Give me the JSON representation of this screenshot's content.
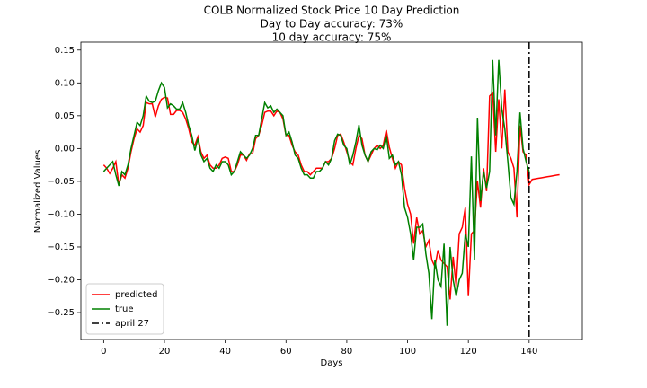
{
  "chart_data": {
    "type": "line",
    "title": "COLB Normalized Stock Price 10 Day Prediction",
    "subtitles": [
      "Day to Day accuracy: 73%",
      "10 day accuracy: 75%"
    ],
    "x_label": "Days",
    "y_label": "Normalized Values",
    "x": [
      0,
      1,
      2,
      3,
      4,
      5,
      6,
      7,
      8,
      9,
      10,
      11,
      12,
      13,
      14,
      15,
      16,
      17,
      18,
      19,
      20,
      21,
      22,
      23,
      24,
      25,
      26,
      27,
      28,
      29,
      30,
      31,
      32,
      33,
      34,
      35,
      36,
      37,
      38,
      39,
      40,
      41,
      42,
      43,
      44,
      45,
      46,
      47,
      48,
      49,
      50,
      51,
      52,
      53,
      54,
      55,
      56,
      57,
      58,
      59,
      60,
      61,
      62,
      63,
      64,
      65,
      66,
      67,
      68,
      69,
      70,
      71,
      72,
      73,
      74,
      75,
      76,
      77,
      78,
      79,
      80,
      81,
      82,
      83,
      84,
      85,
      86,
      87,
      88,
      89,
      90,
      91,
      92,
      93,
      94,
      95,
      96,
      97,
      98,
      99,
      100,
      101,
      102,
      103,
      104,
      105,
      106,
      107,
      108,
      109,
      110,
      111,
      112,
      113,
      114,
      115,
      116,
      117,
      118,
      119,
      120,
      121,
      122,
      123,
      124,
      125,
      126,
      127,
      128,
      129,
      130,
      131,
      132,
      133,
      134,
      135,
      136,
      137,
      138,
      139,
      140,
      141,
      142,
      143,
      144,
      145,
      146,
      147,
      148,
      149,
      150
    ],
    "series": [
      {
        "name": "predicted",
        "color": "#ff0000",
        "values": [
          -0.025,
          -0.03,
          -0.038,
          -0.03,
          -0.02,
          -0.055,
          -0.04,
          -0.045,
          -0.03,
          -0.005,
          0.015,
          0.03,
          0.025,
          0.035,
          0.07,
          0.068,
          0.068,
          0.048,
          0.065,
          0.075,
          0.078,
          0.077,
          0.052,
          0.052,
          0.058,
          0.058,
          0.055,
          0.045,
          0.03,
          0.01,
          0.005,
          0.018,
          -0.005,
          -0.015,
          -0.01,
          -0.025,
          -0.03,
          -0.03,
          -0.025,
          -0.015,
          -0.013,
          -0.015,
          -0.035,
          -0.035,
          -0.025,
          -0.01,
          -0.01,
          -0.018,
          -0.008,
          -0.008,
          0.015,
          0.02,
          0.035,
          0.055,
          0.057,
          0.057,
          0.05,
          0.057,
          0.055,
          0.045,
          0.02,
          0.02,
          0.005,
          -0.005,
          -0.01,
          -0.025,
          -0.035,
          -0.035,
          -0.04,
          -0.035,
          -0.03,
          -0.03,
          -0.03,
          -0.02,
          -0.02,
          -0.015,
          0.0,
          0.02,
          0.022,
          0.01,
          -0.005,
          -0.02,
          -0.025,
          0.0,
          0.02,
          0.015,
          -0.01,
          -0.02,
          -0.01,
          0.0,
          0.005,
          0.0,
          0.005,
          0.028,
          0.002,
          -0.015,
          -0.03,
          -0.02,
          -0.025,
          -0.06,
          -0.085,
          -0.1,
          -0.145,
          -0.105,
          -0.13,
          -0.125,
          -0.15,
          -0.14,
          -0.17,
          -0.18,
          -0.155,
          -0.17,
          -0.175,
          -0.18,
          -0.23,
          -0.165,
          -0.21,
          -0.13,
          -0.12,
          -0.09,
          -0.225,
          -0.13,
          -0.125,
          -0.05,
          -0.09,
          -0.03,
          -0.065,
          0.08,
          0.085,
          -0.005,
          0.075,
          0.0,
          0.09,
          -0.005,
          -0.015,
          -0.03,
          -0.105,
          0.035,
          -0.005,
          -0.01,
          -0.055,
          -0.047,
          -0.0462,
          -0.0454,
          -0.0446,
          -0.0438,
          -0.043,
          -0.0422,
          -0.0414,
          -0.0406,
          -0.0398
        ]
      },
      {
        "name": "true",
        "color": "#008000",
        "values": [
          -0.035,
          -0.03,
          -0.025,
          -0.02,
          -0.04,
          -0.057,
          -0.035,
          -0.04,
          -0.025,
          0.0,
          0.02,
          0.04,
          0.035,
          0.05,
          0.08,
          0.072,
          0.07,
          0.072,
          0.088,
          0.1,
          0.093,
          0.062,
          0.068,
          0.065,
          0.06,
          0.06,
          0.07,
          0.055,
          0.035,
          0.02,
          -0.003,
          0.015,
          -0.01,
          -0.02,
          -0.015,
          -0.03,
          -0.035,
          -0.025,
          -0.03,
          -0.02,
          -0.02,
          -0.025,
          -0.04,
          -0.035,
          -0.02,
          -0.005,
          -0.01,
          -0.015,
          -0.01,
          0.0,
          0.02,
          0.02,
          0.045,
          0.07,
          0.062,
          0.065,
          0.055,
          0.06,
          0.055,
          0.05,
          0.02,
          0.025,
          0.01,
          -0.01,
          -0.015,
          -0.03,
          -0.04,
          -0.04,
          -0.045,
          -0.045,
          -0.035,
          -0.035,
          -0.03,
          -0.02,
          -0.025,
          -0.015,
          0.012,
          0.022,
          0.02,
          0.005,
          0.0,
          -0.025,
          -0.01,
          0.01,
          0.036,
          0.005,
          -0.01,
          -0.02,
          -0.005,
          0.0,
          -0.002,
          0.005,
          0.0,
          0.02,
          -0.015,
          -0.01,
          -0.025,
          -0.02,
          -0.04,
          -0.09,
          -0.105,
          -0.13,
          -0.17,
          -0.12,
          -0.12,
          -0.115,
          -0.16,
          -0.19,
          -0.26,
          -0.17,
          -0.2,
          -0.21,
          -0.145,
          -0.27,
          -0.15,
          -0.2,
          -0.225,
          -0.2,
          -0.19,
          -0.13,
          -0.15,
          -0.012,
          -0.17,
          0.047,
          -0.08,
          -0.035,
          -0.06,
          -0.035,
          0.135,
          0.02,
          0.135,
          0.06,
          0.03,
          -0.02,
          -0.075,
          -0.085,
          -0.035,
          0.055,
          0.0,
          -0.02,
          -0.035,
          null,
          null,
          null,
          null,
          null,
          null,
          null,
          null,
          null,
          null
        ]
      }
    ],
    "vlines": [
      {
        "name": "april 27",
        "x": 140,
        "color": "#000000"
      }
    ],
    "xlim": [
      -7.5,
      157.5
    ],
    "ylim": [
      -0.291,
      0.162
    ],
    "xticks": [
      0,
      20,
      40,
      60,
      80,
      100,
      120,
      140
    ],
    "yticks": [
      {
        "value": -0.25,
        "label": "−0.25"
      },
      {
        "value": -0.2,
        "label": "−0.20"
      },
      {
        "value": -0.15,
        "label": "−0.15"
      },
      {
        "value": -0.1,
        "label": "−0.10"
      },
      {
        "value": -0.05,
        "label": "−0.05"
      },
      {
        "value": 0,
        "label": "0.00"
      },
      0.05,
      {
        "value": 0.1,
        "label": "0.10"
      },
      0.15
    ],
    "legend": "lower left",
    "grid": false
  }
}
